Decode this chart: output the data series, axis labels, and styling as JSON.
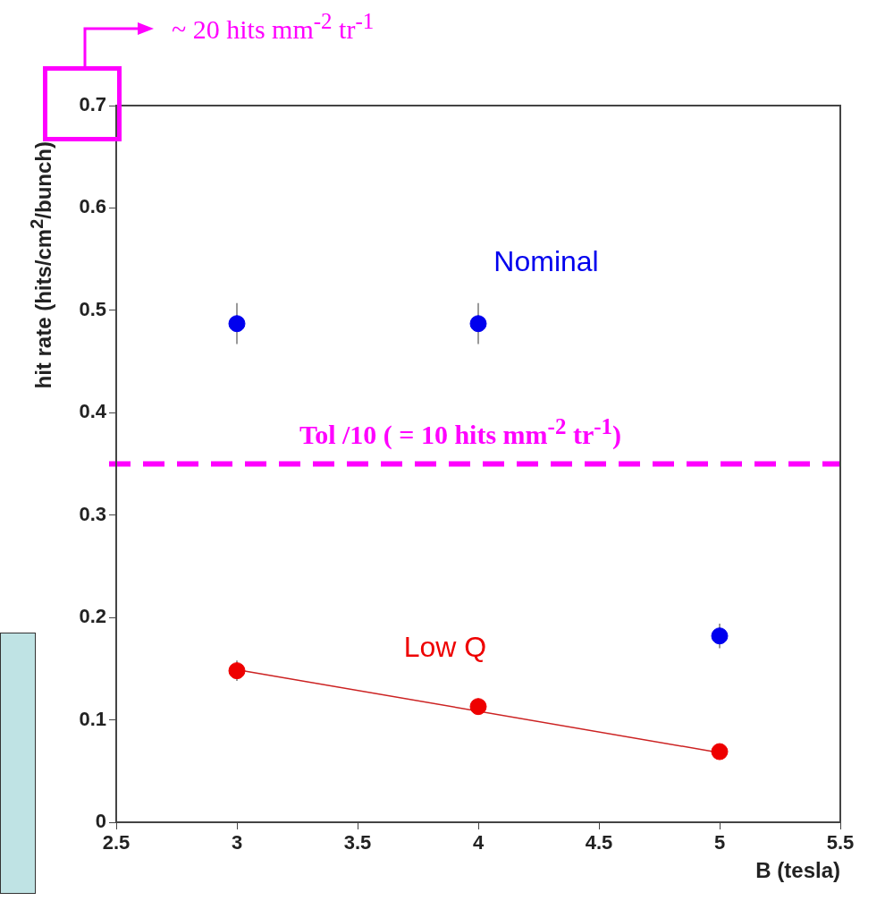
{
  "chart_data": {
    "type": "scatter",
    "xlabel": "B (tesla)",
    "ylabel": "hit rate (hits/cm$^{2}$/bunch)",
    "xlim": [
      2.5,
      5.5
    ],
    "xticks": [
      2.5,
      3,
      3.5,
      4,
      4.5,
      5,
      5.5
    ],
    "ylim": [
      0,
      0.7
    ],
    "yticks": [
      0,
      0.1,
      0.2,
      0.3,
      0.4,
      0.5,
      0.6,
      0.7
    ],
    "grid": false,
    "legend": false,
    "marker": "circle",
    "series": [
      {
        "name": "Nominal",
        "color": "#0000ee",
        "x": [
          3,
          4,
          5
        ],
        "values": [
          0.487,
          0.487,
          0.182
        ],
        "errors": [
          0.02,
          0.02,
          0.012
        ]
      },
      {
        "name": "Low Q",
        "color": "#ee0000",
        "x": [
          3,
          4,
          5
        ],
        "values": [
          0.148,
          0.113,
          0.069
        ],
        "errors": [
          0.01,
          null,
          null
        ]
      },
      {
        "type": "line",
        "color": "#cc2222",
        "marker": "none",
        "x": [
          3,
          5
        ],
        "values": [
          0.149,
          0.068
        ]
      }
    ],
    "ref_lines": [
      {
        "axis": "y",
        "value": 0.35,
        "color": "#ff00ff",
        "line_style": "dashed"
      }
    ],
    "annotations": [
      "~ 20 hits mm$^{-2}$ tr$^{-1}$",
      "Tol /10 ( = 10 hits mm$^{-2}$ tr$^{-1}$)"
    ]
  }
}
